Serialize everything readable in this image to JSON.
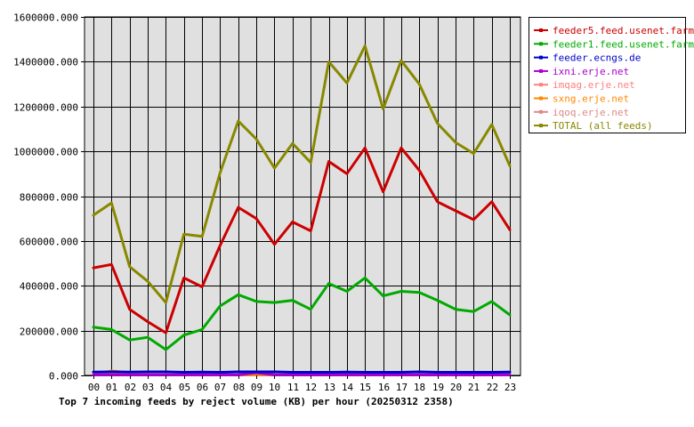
{
  "chart_data": {
    "type": "line",
    "title": "Top 7 incoming feeds by reject volume (KB) per hour (20250312 2358)",
    "xlabel": "",
    "ylabel": "",
    "ylim": [
      0,
      1600000
    ],
    "yticks": [
      "0.000",
      "200000.000",
      "400000.000",
      "600000.000",
      "800000.000",
      "1000000.000",
      "1200000.000",
      "1400000.000",
      "1600000.000"
    ],
    "ytick_values": [
      0,
      200000,
      400000,
      600000,
      800000,
      1000000,
      1200000,
      1400000,
      1600000
    ],
    "categories": [
      "00",
      "01",
      "02",
      "03",
      "04",
      "05",
      "06",
      "07",
      "08",
      "09",
      "10",
      "11",
      "12",
      "13",
      "14",
      "15",
      "16",
      "17",
      "18",
      "19",
      "20",
      "21",
      "22",
      "23"
    ],
    "grid": true,
    "legend_position": "right",
    "plot_background": "#e0e0e0",
    "series": [
      {
        "name": "feeder5.feed.usenet.farm",
        "color": "#cc0000",
        "values": [
          480000,
          495000,
          295000,
          240000,
          190000,
          435000,
          395000,
          580000,
          750000,
          700000,
          585000,
          685000,
          645000,
          955000,
          900000,
          1015000,
          820000,
          1015000,
          915000,
          775000,
          735000,
          695000,
          775000,
          650000
        ]
      },
      {
        "name": "feeder1.feed.usenet.farm",
        "color": "#00aa00",
        "values": [
          215000,
          205000,
          158000,
          170000,
          115000,
          180000,
          205000,
          310000,
          360000,
          330000,
          325000,
          335000,
          295000,
          410000,
          375000,
          435000,
          355000,
          375000,
          370000,
          335000,
          295000,
          285000,
          330000,
          270000
        ]
      },
      {
        "name": "feeder.ecngs.de",
        "color": "#0000cc",
        "values": [
          15000,
          16000,
          15000,
          16000,
          16000,
          14000,
          15000,
          14000,
          16000,
          16000,
          16000,
          14000,
          14000,
          14000,
          15000,
          14000,
          14000,
          14000,
          16000,
          14000,
          14000,
          14000,
          14000,
          15000
        ]
      },
      {
        "name": "ixni.erje.net",
        "color": "#aa00cc",
        "values": [
          2000,
          2000,
          2000,
          2000,
          2000,
          2000,
          2000,
          2000,
          2000,
          12000,
          2000,
          2000,
          2000,
          2000,
          2000,
          2000,
          2000,
          2000,
          2000,
          2000,
          2000,
          2000,
          2000,
          2000
        ]
      },
      {
        "name": "imqag.erje.net",
        "color": "#ff8080",
        "values": [
          3000,
          6000,
          6000,
          3000,
          3000,
          3000,
          3000,
          3000,
          3000,
          10000,
          3000,
          3000,
          3000,
          8000,
          10000,
          8000,
          3000,
          3000,
          3000,
          3000,
          3000,
          3000,
          3000,
          3000
        ]
      },
      {
        "name": "sxng.erje.net",
        "color": "#ff8800",
        "values": [
          3000,
          20000,
          12000,
          3000,
          2000,
          2000,
          2000,
          2000,
          2000,
          2000,
          2000,
          2000,
          2000,
          2000,
          2000,
          2000,
          2000,
          2000,
          2000,
          2000,
          2000,
          2000,
          2000,
          2000
        ]
      },
      {
        "name": "iqoq.erje.net",
        "color": "#dd8888",
        "values": [
          2000,
          2000,
          2000,
          2000,
          2000,
          2000,
          2000,
          2000,
          2000,
          2000,
          2000,
          2000,
          2000,
          2000,
          2000,
          2000,
          2000,
          2000,
          2000,
          2000,
          2000,
          2000,
          2000,
          2000
        ]
      },
      {
        "name": "TOTAL (all feeds)",
        "color": "#888800",
        "values": [
          715000,
          770000,
          485000,
          420000,
          325000,
          630000,
          620000,
          905000,
          1135000,
          1055000,
          925000,
          1035000,
          950000,
          1400000,
          1305000,
          1470000,
          1190000,
          1405000,
          1300000,
          1125000,
          1040000,
          990000,
          1120000,
          935000
        ]
      }
    ]
  }
}
